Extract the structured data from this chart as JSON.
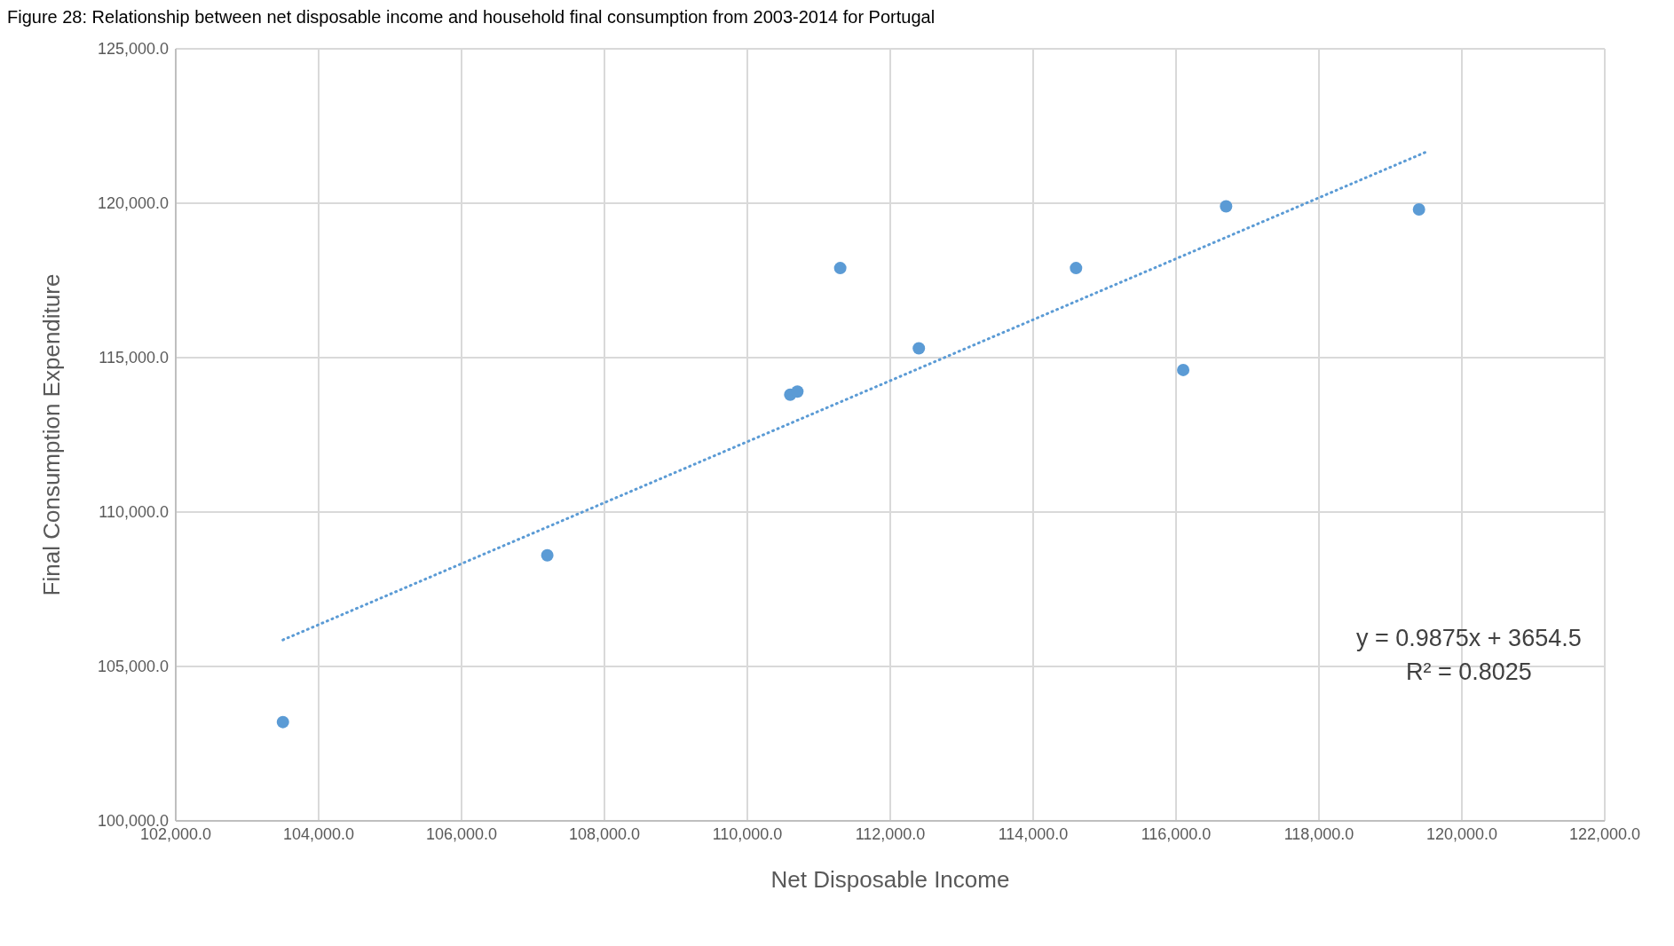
{
  "chart_data": {
    "type": "scatter",
    "title": "Figure 28: Relationship between net disposable income and household final consumption from 2003-2014 for Portugal",
    "xlabel": "Net Disposable Income",
    "ylabel": "Final Consumption Expenditure",
    "x": [
      103500,
      107200,
      110600,
      110700,
      111300,
      112400,
      114600,
      116100,
      116700,
      119400
    ],
    "series": [
      {
        "color": "#5b9bd5",
        "values": [
          103200,
          108600,
          113800,
          113900,
          117900,
          115300,
          117900,
          114600,
          119900,
          119800
        ],
        "marker": "circle"
      },
      {
        "type": "line",
        "x": [
          103500,
          119500
        ],
        "values": [
          105860,
          121660
        ],
        "color": "#5b9bd5",
        "line_style": "dotted",
        "marker": "none"
      }
    ],
    "xlim": [
      102000,
      122000
    ],
    "xticks": [
      {
        "value": 102000,
        "label": "102,000.0"
      },
      {
        "value": 104000,
        "label": "104,000.0"
      },
      {
        "value": 106000,
        "label": "106,000.0"
      },
      {
        "value": 108000,
        "label": "108,000.0"
      },
      {
        "value": 110000,
        "label": "110,000.0"
      },
      {
        "value": 112000,
        "label": "112,000.0"
      },
      {
        "value": 114000,
        "label": "114,000.0"
      },
      {
        "value": 116000,
        "label": "116,000.0"
      },
      {
        "value": 118000,
        "label": "118,000.0"
      },
      {
        "value": 120000,
        "label": "120,000.0"
      },
      {
        "value": 122000,
        "label": "122,000.0"
      }
    ],
    "ylim": [
      100000,
      125000
    ],
    "yticks": [
      {
        "value": 100000,
        "label": "100,000.0"
      },
      {
        "value": 105000,
        "label": "105,000.0"
      },
      {
        "value": 110000,
        "label": "110,000.0"
      },
      {
        "value": 115000,
        "label": "115,000.0"
      },
      {
        "value": 120000,
        "label": "120,000.0"
      },
      {
        "value": 125000,
        "label": "125,000.0"
      }
    ],
    "grid": true,
    "annotations": [
      "y = 0.9875x + 3654.5",
      "R² = 0.8025"
    ]
  }
}
